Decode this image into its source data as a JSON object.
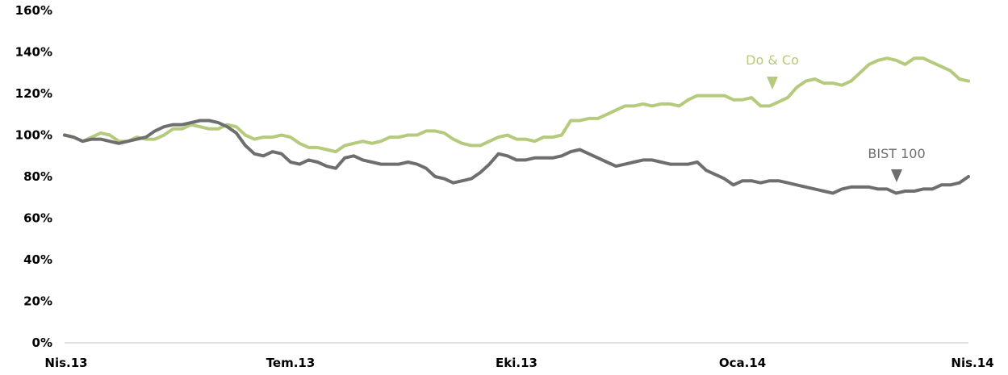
{
  "chart_data": {
    "type": "line",
    "ylim": [
      0,
      160
    ],
    "y_ticks": [
      "0%",
      "20%",
      "40%",
      "60%",
      "80%",
      "100%",
      "120%",
      "140%",
      "160%"
    ],
    "x_ticks": [
      "Nis.13",
      "Tem.13",
      "Eki.13",
      "Oca.14",
      "Nis.14"
    ],
    "grid": false,
    "colors": {
      "doco": "#b5ca7c",
      "bist": "#6e6e6e",
      "axis": "#bfbfbf"
    },
    "series": [
      {
        "name": "Do & Co",
        "label": "Do & Co",
        "color": "#b5ca7c",
        "points": [
          [
            0.0,
            100
          ],
          [
            0.01,
            99
          ],
          [
            0.02,
            97
          ],
          [
            0.03,
            99
          ],
          [
            0.04,
            101
          ],
          [
            0.05,
            100
          ],
          [
            0.06,
            97
          ],
          [
            0.07,
            97
          ],
          [
            0.08,
            99
          ],
          [
            0.09,
            98
          ],
          [
            0.1,
            98
          ],
          [
            0.11,
            100
          ],
          [
            0.12,
            103
          ],
          [
            0.13,
            103
          ],
          [
            0.14,
            105
          ],
          [
            0.15,
            104
          ],
          [
            0.16,
            103
          ],
          [
            0.17,
            103
          ],
          [
            0.18,
            105
          ],
          [
            0.19,
            104
          ],
          [
            0.2,
            100
          ],
          [
            0.21,
            98
          ],
          [
            0.22,
            99
          ],
          [
            0.23,
            99
          ],
          [
            0.24,
            100
          ],
          [
            0.25,
            99
          ],
          [
            0.26,
            96
          ],
          [
            0.27,
            94
          ],
          [
            0.28,
            94
          ],
          [
            0.29,
            93
          ],
          [
            0.3,
            92
          ],
          [
            0.31,
            95
          ],
          [
            0.32,
            96
          ],
          [
            0.33,
            97
          ],
          [
            0.34,
            96
          ],
          [
            0.35,
            97
          ],
          [
            0.36,
            99
          ],
          [
            0.37,
            99
          ],
          [
            0.38,
            100
          ],
          [
            0.39,
            100
          ],
          [
            0.4,
            102
          ],
          [
            0.41,
            102
          ],
          [
            0.42,
            101
          ],
          [
            0.43,
            98
          ],
          [
            0.44,
            96
          ],
          [
            0.45,
            95
          ],
          [
            0.46,
            95
          ],
          [
            0.47,
            97
          ],
          [
            0.48,
            99
          ],
          [
            0.49,
            100
          ],
          [
            0.5,
            98
          ],
          [
            0.51,
            98
          ],
          [
            0.52,
            97
          ],
          [
            0.53,
            99
          ],
          [
            0.54,
            99
          ],
          [
            0.55,
            100
          ],
          [
            0.56,
            107
          ],
          [
            0.57,
            107
          ],
          [
            0.58,
            108
          ],
          [
            0.59,
            108
          ],
          [
            0.6,
            110
          ],
          [
            0.61,
            112
          ],
          [
            0.62,
            114
          ],
          [
            0.63,
            114
          ],
          [
            0.64,
            115
          ],
          [
            0.65,
            114
          ],
          [
            0.66,
            115
          ],
          [
            0.67,
            115
          ],
          [
            0.68,
            114
          ],
          [
            0.69,
            117
          ],
          [
            0.7,
            119
          ],
          [
            0.71,
            119
          ],
          [
            0.72,
            119
          ],
          [
            0.73,
            119
          ],
          [
            0.74,
            117
          ],
          [
            0.75,
            117
          ],
          [
            0.76,
            118
          ],
          [
            0.77,
            114
          ],
          [
            0.78,
            114
          ],
          [
            0.79,
            116
          ],
          [
            0.8,
            118
          ],
          [
            0.81,
            123
          ],
          [
            0.82,
            126
          ],
          [
            0.83,
            127
          ],
          [
            0.84,
            125
          ],
          [
            0.85,
            125
          ],
          [
            0.86,
            124
          ],
          [
            0.87,
            126
          ],
          [
            0.88,
            130
          ],
          [
            0.89,
            134
          ],
          [
            0.9,
            136
          ],
          [
            0.91,
            137
          ],
          [
            0.92,
            136
          ],
          [
            0.93,
            134
          ],
          [
            0.94,
            137
          ],
          [
            0.95,
            137
          ],
          [
            0.96,
            135
          ],
          [
            0.97,
            133
          ],
          [
            0.98,
            131
          ],
          [
            0.99,
            127
          ],
          [
            1.0,
            126
          ]
        ]
      },
      {
        "name": "BIST 100",
        "label": "BIST 100",
        "color": "#6e6e6e",
        "points": [
          [
            0.0,
            100
          ],
          [
            0.01,
            99
          ],
          [
            0.02,
            97
          ],
          [
            0.03,
            98
          ],
          [
            0.04,
            98
          ],
          [
            0.05,
            97
          ],
          [
            0.06,
            96
          ],
          [
            0.07,
            97
          ],
          [
            0.08,
            98
          ],
          [
            0.09,
            99
          ],
          [
            0.1,
            102
          ],
          [
            0.11,
            104
          ],
          [
            0.12,
            105
          ],
          [
            0.13,
            105
          ],
          [
            0.14,
            106
          ],
          [
            0.15,
            107
          ],
          [
            0.16,
            107
          ],
          [
            0.17,
            106
          ],
          [
            0.18,
            104
          ],
          [
            0.19,
            101
          ],
          [
            0.2,
            95
          ],
          [
            0.21,
            91
          ],
          [
            0.22,
            90
          ],
          [
            0.23,
            92
          ],
          [
            0.24,
            91
          ],
          [
            0.25,
            87
          ],
          [
            0.26,
            86
          ],
          [
            0.27,
            88
          ],
          [
            0.28,
            87
          ],
          [
            0.29,
            85
          ],
          [
            0.3,
            84
          ],
          [
            0.31,
            89
          ],
          [
            0.32,
            90
          ],
          [
            0.33,
            88
          ],
          [
            0.34,
            87
          ],
          [
            0.35,
            86
          ],
          [
            0.36,
            86
          ],
          [
            0.37,
            86
          ],
          [
            0.38,
            87
          ],
          [
            0.39,
            86
          ],
          [
            0.4,
            84
          ],
          [
            0.41,
            80
          ],
          [
            0.42,
            79
          ],
          [
            0.43,
            77
          ],
          [
            0.44,
            78
          ],
          [
            0.45,
            79
          ],
          [
            0.46,
            82
          ],
          [
            0.47,
            86
          ],
          [
            0.48,
            91
          ],
          [
            0.49,
            90
          ],
          [
            0.5,
            88
          ],
          [
            0.51,
            88
          ],
          [
            0.52,
            89
          ],
          [
            0.53,
            89
          ],
          [
            0.54,
            89
          ],
          [
            0.55,
            90
          ],
          [
            0.56,
            92
          ],
          [
            0.57,
            93
          ],
          [
            0.58,
            91
          ],
          [
            0.59,
            89
          ],
          [
            0.6,
            87
          ],
          [
            0.61,
            85
          ],
          [
            0.62,
            86
          ],
          [
            0.63,
            87
          ],
          [
            0.64,
            88
          ],
          [
            0.65,
            88
          ],
          [
            0.66,
            87
          ],
          [
            0.67,
            86
          ],
          [
            0.68,
            86
          ],
          [
            0.69,
            86
          ],
          [
            0.7,
            87
          ],
          [
            0.71,
            83
          ],
          [
            0.72,
            81
          ],
          [
            0.73,
            79
          ],
          [
            0.74,
            76
          ],
          [
            0.75,
            78
          ],
          [
            0.76,
            78
          ],
          [
            0.77,
            77
          ],
          [
            0.78,
            78
          ],
          [
            0.79,
            78
          ],
          [
            0.8,
            77
          ],
          [
            0.81,
            76
          ],
          [
            0.82,
            75
          ],
          [
            0.83,
            74
          ],
          [
            0.84,
            73
          ],
          [
            0.85,
            72
          ],
          [
            0.86,
            74
          ],
          [
            0.87,
            75
          ],
          [
            0.88,
            75
          ],
          [
            0.89,
            75
          ],
          [
            0.9,
            74
          ],
          [
            0.91,
            74
          ],
          [
            0.92,
            72
          ],
          [
            0.93,
            73
          ],
          [
            0.94,
            73
          ],
          [
            0.95,
            74
          ],
          [
            0.96,
            74
          ],
          [
            0.97,
            76
          ],
          [
            0.98,
            76
          ],
          [
            0.99,
            77
          ],
          [
            1.0,
            80
          ]
        ]
      }
    ]
  }
}
